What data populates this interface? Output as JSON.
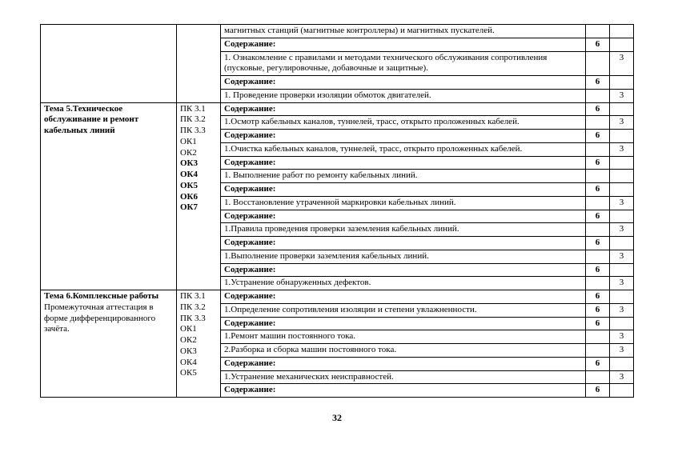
{
  "pageNumber": "32",
  "rows": [
    {
      "c1": "",
      "c2": "",
      "c3": "  магнитных    станций (магнитные    контроллеры)    и    магнитных пускателей.",
      "c4": "",
      "c5": "",
      "b3": false,
      "rs1": 5,
      "rs2": 5
    },
    {
      "c3": "Содержание:",
      "c4": "6",
      "c5": "",
      "b3": true
    },
    {
      "c3": "1. Ознакомление с правилами и методами технического обслуживания сопротивления (пусковые, регулировочные, добавочные и защитные).",
      "c4": "",
      "c5": "3",
      "b3": false
    },
    {
      "c3": "Содержание:",
      "c4": "6",
      "c5": "",
      "b3": true
    },
    {
      "c3": "1. Проведение проверки изоляции обмоток двигателей.",
      "c4": "",
      "c5": "3",
      "b3": false
    },
    {
      "c1": "Тема 5.Техническое обслуживание и ремонт кабельных линий",
      "c2": "ПК 3.1\nПК 3.2\nПК 3.3\nОК1\nОК2\n**ОК3**\n**ОК4**\n**ОК5**\n**ОК6**\n**ОК7**",
      "c3": "Содержание:",
      "c4": "6",
      "c5": "",
      "b3": true,
      "b1": true,
      "rs1": 14,
      "rs2": 14
    },
    {
      "c3": "1.Осмотр  кабельных  каналов, туннелей, трасс, открыто проложенных кабелей.",
      "c4": "",
      "c5": "3",
      "b3": false
    },
    {
      "c3": "Содержание:",
      "c4": "6",
      "c5": "",
      "b3": true
    },
    {
      "c3": "1.Очистка кабельных каналов, туннелей, трасс, открыто проложенных кабелей.",
      "c4": "",
      "c5": "3",
      "b3": false
    },
    {
      "c3": "Содержание:",
      "c4": "6",
      "c5": "",
      "b3": true
    },
    {
      "c3": "1. Выполнение работ по ремонту кабельных линий.",
      "c4": "",
      "c5": "",
      "b3": false
    },
    {
      "c3": "Содержание:",
      "c4": "6",
      "c5": "",
      "b3": true
    },
    {
      "c3": "1. Восстановление утраченной маркировки кабельных линий.",
      "c4": "",
      "c5": "3",
      "b3": false
    },
    {
      "c3": "Содержание:",
      "c4": "6",
      "c5": "",
      "b3": true
    },
    {
      "c3": "1.Правила проведения проверки заземления кабельных линий.",
      "c4": "",
      "c5": "3",
      "b3": false
    },
    {
      "c3": "Содержание:",
      "c4": "6",
      "c5": "",
      "b3": true
    },
    {
      "c3": "1.Выполнение проверки заземления кабельных линий.",
      "c4": "",
      "c5": "3",
      "b3": false
    },
    {
      "c3": "Содержание:",
      "c4": "6",
      "c5": "",
      "b3": true
    },
    {
      "c3": "1.Устранение обнаруженных дефектов.",
      "c4": "",
      "c5": "3",
      "b3": false
    },
    {
      "c1": "Тема 6.Комплексные работы\nПромежуточная аттестация в форме дифференцированного зачёта.",
      "c2": "ПК 3.1\nПК 3.2\nПК 3.3\nОК1\nОК2\nОК3\nОК4\nОК5",
      "c3": "Содержание:",
      "c4": "6",
      "c5": "",
      "b3": true,
      "b1": true,
      "rs1": 8,
      "rs2": 8
    },
    {
      "c3": "1.Определение сопротивления изоляции и степени увлажненности.",
      "c4": "6",
      "c5": "3",
      "b3": false
    },
    {
      "c3": "Содержание:",
      "c4": "6",
      "c5": "",
      "b3": true
    },
    {
      "c3": "1.Ремонт машин постоянного тока.",
      "c4": "",
      "c5": "3",
      "b3": false
    },
    {
      "c3": "2.Разборка и сборка машин постоянного тока.",
      "c4": "",
      "c5": "3",
      "b3": false
    },
    {
      "c3": "Содержание:",
      "c4": "6",
      "c5": "",
      "b3": true
    },
    {
      "c3": "1.Устранение механических неисправностей.",
      "c4": "",
      "c5": "3",
      "b3": false
    },
    {
      "c3": "Содержание:",
      "c4": "6",
      "c5": "",
      "b3": true
    }
  ]
}
